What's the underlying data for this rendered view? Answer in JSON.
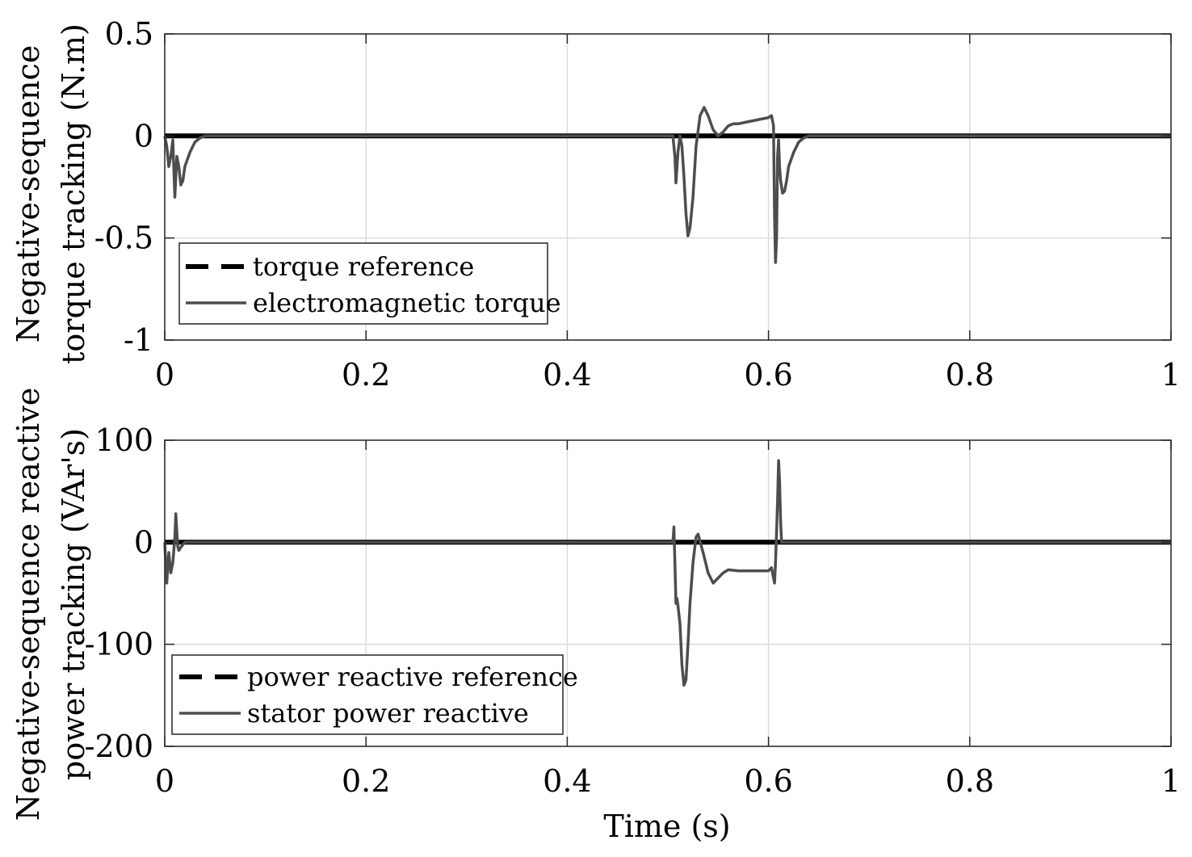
{
  "chart_data": [
    {
      "type": "line",
      "panel": "top",
      "ylabel_lines": [
        "Negative-sequence",
        "torque tracking (N.m)"
      ],
      "xlabel": "",
      "xlim": [
        0,
        1
      ],
      "ylim": [
        -1,
        0.5
      ],
      "xticks": [
        0,
        0.2,
        0.4,
        0.6,
        0.8,
        1
      ],
      "xtick_labels": [
        "0",
        "0.2",
        "0.4",
        "0.6",
        "0.8",
        "1"
      ],
      "yticks": [
        0.5,
        0,
        -0.5,
        -1
      ],
      "ytick_labels": [
        "0.5",
        "0",
        "-0.5",
        "-1"
      ],
      "grid": true,
      "legend_location": "lower-left",
      "series": [
        {
          "name": "torque reference",
          "style": "dashed-black",
          "x": [
            0,
            1
          ],
          "y": [
            0,
            0
          ]
        },
        {
          "name": "electromagnetic torque",
          "style": "solid-gray",
          "x": [
            0,
            0.002,
            0.004,
            0.006,
            0.008,
            0.01,
            0.012,
            0.014,
            0.016,
            0.018,
            0.02,
            0.025,
            0.03,
            0.035,
            0.04,
            0.05,
            0.1,
            0.5,
            0.505,
            0.507,
            0.508,
            0.51,
            0.512,
            0.514,
            0.516,
            0.518,
            0.52,
            0.522,
            0.525,
            0.528,
            0.532,
            0.536,
            0.54,
            0.545,
            0.55,
            0.555,
            0.56,
            0.565,
            0.57,
            0.58,
            0.59,
            0.6,
            0.603,
            0.605,
            0.606,
            0.607,
            0.608,
            0.609,
            0.61,
            0.611,
            0.612,
            0.614,
            0.616,
            0.618,
            0.62,
            0.625,
            0.63,
            0.635,
            0.64,
            0.65,
            0.7,
            1
          ],
          "y": [
            0,
            -0.05,
            -0.15,
            -0.1,
            -0.02,
            -0.3,
            -0.1,
            -0.15,
            -0.24,
            -0.22,
            -0.15,
            -0.08,
            -0.03,
            -0.01,
            0,
            0,
            0,
            0,
            0,
            -0.1,
            -0.23,
            -0.08,
            0,
            -0.05,
            -0.2,
            -0.38,
            -0.49,
            -0.45,
            -0.3,
            -0.05,
            0.1,
            0.14,
            0.1,
            0.03,
            0,
            0.02,
            0.05,
            0.06,
            0.06,
            0.07,
            0.08,
            0.09,
            0.1,
            0.05,
            -0.4,
            -0.62,
            -0.5,
            -0.1,
            -0.02,
            -0.15,
            -0.22,
            -0.28,
            -0.27,
            -0.22,
            -0.15,
            -0.08,
            -0.03,
            -0.01,
            0,
            0,
            0,
            0
          ]
        }
      ]
    },
    {
      "type": "line",
      "panel": "bottom",
      "ylabel_lines": [
        "Negative-sequence reactive",
        "power tracking (VAr's)"
      ],
      "xlabel": "Time (s)",
      "xlim": [
        0,
        1
      ],
      "ylim": [
        -200,
        100
      ],
      "xticks": [
        0,
        0.2,
        0.4,
        0.6,
        0.8,
        1
      ],
      "xtick_labels": [
        "0",
        "0.2",
        "0.4",
        "0.6",
        "0.8",
        "1"
      ],
      "yticks": [
        100,
        0,
        -100,
        -200
      ],
      "ytick_labels": [
        "100",
        "0",
        "-100",
        "-200"
      ],
      "grid": true,
      "legend_location": "lower-left",
      "series": [
        {
          "name": "power reactive reference",
          "style": "dashed-black",
          "x": [
            0,
            1
          ],
          "y": [
            0,
            0
          ]
        },
        {
          "name": "stator power reactive",
          "style": "solid-gray",
          "x": [
            0,
            0.002,
            0.004,
            0.006,
            0.008,
            0.01,
            0.011,
            0.012,
            0.013,
            0.014,
            0.016,
            0.02,
            0.5,
            0.505,
            0.506,
            0.507,
            0.508,
            0.509,
            0.51,
            0.512,
            0.514,
            0.516,
            0.518,
            0.52,
            0.522,
            0.525,
            0.528,
            0.53,
            0.535,
            0.54,
            0.545,
            0.55,
            0.555,
            0.56,
            0.57,
            0.58,
            0.59,
            0.6,
            0.603,
            0.605,
            0.606,
            0.607,
            0.608,
            0.609,
            0.61,
            0.611,
            0.612,
            0.613,
            0.615,
            0.62,
            1
          ],
          "y": [
            0,
            -40,
            -10,
            -30,
            -20,
            5,
            28,
            10,
            -5,
            -8,
            -5,
            0,
            0,
            0,
            15,
            -20,
            -60,
            -55,
            -62,
            -80,
            -120,
            -140,
            -135,
            -100,
            -60,
            -20,
            5,
            8,
            -10,
            -30,
            -40,
            -35,
            -30,
            -27,
            -28,
            -28,
            -28,
            -28,
            -25,
            -35,
            -40,
            -20,
            10,
            40,
            80,
            60,
            20,
            0,
            0,
            0,
            0
          ]
        }
      ]
    }
  ]
}
